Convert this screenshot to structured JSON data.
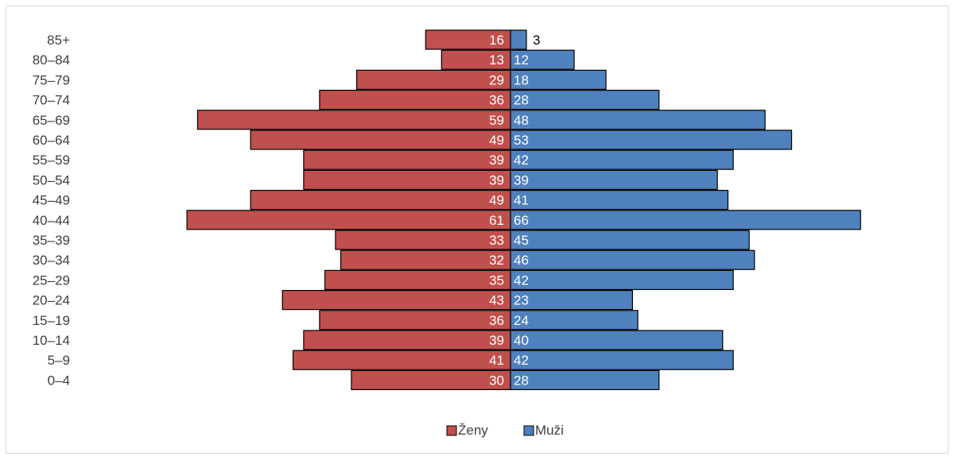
{
  "chart_data": {
    "type": "bar",
    "orientation": "horizontal",
    "layout": "population-pyramid",
    "categories": [
      "0–4",
      "5–9",
      "10–14",
      "15–19",
      "20–24",
      "25–29",
      "30–34",
      "35–39",
      "40–44",
      "45–49",
      "50–54",
      "55–59",
      "60–64",
      "65–69",
      "70–74",
      "75–79",
      "80–84",
      "85+"
    ],
    "series": [
      {
        "name": "Ženy",
        "side": "left",
        "color": "#c0504d",
        "values": [
          30,
          41,
          39,
          36,
          43,
          35,
          32,
          33,
          61,
          49,
          39,
          39,
          49,
          59,
          36,
          29,
          13,
          16
        ]
      },
      {
        "name": "Muži",
        "side": "right",
        "color": "#4f81bd",
        "values": [
          28,
          42,
          40,
          24,
          23,
          42,
          46,
          45,
          66,
          41,
          39,
          42,
          53,
          48,
          28,
          18,
          12,
          3
        ]
      }
    ],
    "data_labels": true,
    "legend_position": "bottom",
    "grid": false,
    "xlim": [
      -61,
      66
    ]
  }
}
